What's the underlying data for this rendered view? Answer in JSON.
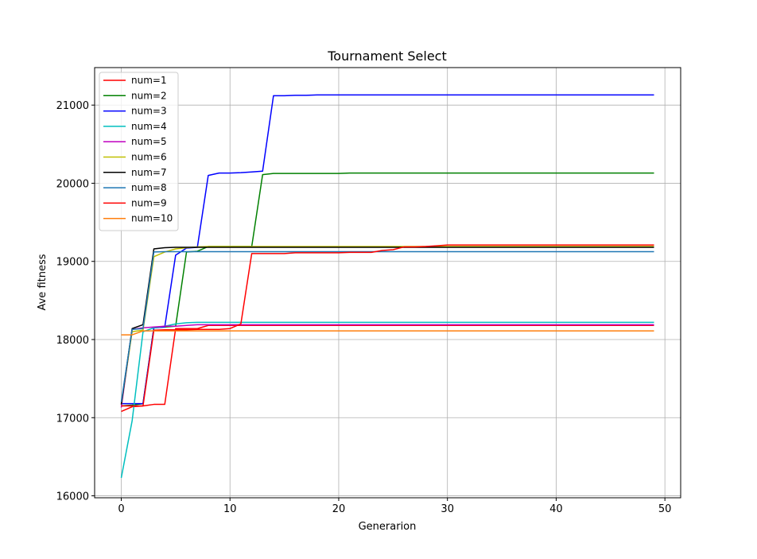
{
  "chart_data": {
    "type": "line",
    "title": "Tournament Select",
    "xlabel": "Generarion",
    "ylabel": "Ave fitness",
    "xlim": [
      -2.45,
      51.45
    ],
    "ylim": [
      15975,
      21480
    ],
    "xticks": [
      0,
      10,
      20,
      30,
      40,
      50
    ],
    "yticks": [
      16000,
      17000,
      18000,
      19000,
      20000,
      21000
    ],
    "grid": true,
    "legend_position": "upper-left",
    "x": [
      0,
      1,
      2,
      3,
      4,
      5,
      6,
      7,
      8,
      9,
      10,
      11,
      12,
      13,
      14,
      15,
      16,
      17,
      18,
      19,
      20,
      21,
      22,
      23,
      24,
      25,
      26,
      27,
      28,
      29,
      30,
      31,
      32,
      33,
      34,
      35,
      36,
      37,
      38,
      39,
      40,
      41,
      42,
      43,
      44,
      45,
      46,
      47,
      48,
      49
    ],
    "series": [
      {
        "name": "num=1",
        "color": "#ff0000",
        "values": [
          17080,
          17140,
          17150,
          17170,
          17170,
          18140,
          18140,
          18140,
          18180,
          18180,
          18180,
          18180,
          18180,
          18180,
          18180,
          18180,
          18180,
          18180,
          18180,
          18180,
          18180,
          18180,
          18180,
          18180,
          18180,
          18180,
          18180,
          18180,
          18180,
          18180,
          18180,
          18180,
          18180,
          18180,
          18180,
          18180,
          18180,
          18180,
          18180,
          18180,
          18180,
          18180,
          18180,
          18180,
          18180,
          18180,
          18180,
          18180,
          18180,
          18180
        ]
      },
      {
        "name": "num=2",
        "color": "#008000",
        "values": [
          17150,
          17160,
          17180,
          18150,
          18160,
          18170,
          19120,
          19130,
          19190,
          19190,
          19190,
          19190,
          19190,
          20110,
          20125,
          20125,
          20125,
          20125,
          20125,
          20125,
          20125,
          20130,
          20130,
          20130,
          20130,
          20130,
          20130,
          20130,
          20130,
          20130,
          20130,
          20130,
          20130,
          20130,
          20130,
          20130,
          20130,
          20130,
          20130,
          20130,
          20130,
          20130,
          20130,
          20130,
          20130,
          20130,
          20130,
          20130,
          20130,
          20130
        ]
      },
      {
        "name": "num=3",
        "color": "#0000ff",
        "values": [
          17180,
          17180,
          17180,
          18150,
          18160,
          19080,
          19170,
          19180,
          20100,
          20130,
          20130,
          20135,
          20145,
          20155,
          21120,
          21120,
          21125,
          21125,
          21130,
          21130,
          21130,
          21130,
          21130,
          21130,
          21130,
          21130,
          21130,
          21130,
          21130,
          21130,
          21130,
          21130,
          21130,
          21130,
          21130,
          21130,
          21130,
          21130,
          21130,
          21130,
          21130,
          21130,
          21130,
          21130,
          21130,
          21130,
          21130,
          21130,
          21130,
          21130
        ]
      },
      {
        "name": "num=4",
        "color": "#00bfbf",
        "values": [
          16230,
          16960,
          18100,
          18150,
          18170,
          18200,
          18215,
          18220,
          18220,
          18220,
          18220,
          18220,
          18220,
          18220,
          18220,
          18220,
          18220,
          18220,
          18220,
          18220,
          18220,
          18220,
          18220,
          18220,
          18220,
          18220,
          18220,
          18220,
          18220,
          18220,
          18220,
          18220,
          18220,
          18220,
          18220,
          18220,
          18220,
          18220,
          18220,
          18220,
          18220,
          18220,
          18220,
          18220,
          18220,
          18220,
          18220,
          18220,
          18220,
          18220
        ]
      },
      {
        "name": "num=5",
        "color": "#bf00bf",
        "values": [
          17130,
          18130,
          18150,
          18160,
          18170,
          18170,
          18180,
          18190,
          18190,
          18190,
          18190,
          18190,
          18190,
          18190,
          18190,
          18190,
          18190,
          18190,
          18190,
          18190,
          18190,
          18190,
          18190,
          18190,
          18190,
          18190,
          18190,
          18190,
          18190,
          18190,
          18190,
          18190,
          18190,
          18190,
          18190,
          18190,
          18190,
          18190,
          18190,
          18190,
          18190,
          18190,
          18190,
          18190,
          18190,
          18190,
          18190,
          18190,
          18190,
          18190
        ]
      },
      {
        "name": "num=6",
        "color": "#bfbf00",
        "values": [
          17170,
          18100,
          18120,
          19060,
          19120,
          19160,
          19175,
          19185,
          19190,
          19190,
          19190,
          19190,
          19190,
          19190,
          19190,
          19190,
          19190,
          19190,
          19190,
          19190,
          19190,
          19190,
          19190,
          19190,
          19190,
          19190,
          19190,
          19190,
          19190,
          19190,
          19190,
          19190,
          19190,
          19190,
          19190,
          19190,
          19190,
          19190,
          19190,
          19190,
          19190,
          19190,
          19190,
          19190,
          19190,
          19190,
          19190,
          19190,
          19190,
          19190
        ]
      },
      {
        "name": "num=7",
        "color": "#000000",
        "values": [
          17170,
          18140,
          18190,
          19160,
          19175,
          19180,
          19180,
          19180,
          19180,
          19180,
          19180,
          19180,
          19180,
          19180,
          19180,
          19180,
          19180,
          19180,
          19180,
          19180,
          19180,
          19180,
          19180,
          19180,
          19180,
          19180,
          19180,
          19180,
          19180,
          19180,
          19180,
          19180,
          19180,
          19180,
          19180,
          19180,
          19180,
          19180,
          19180,
          19180,
          19180,
          19180,
          19180,
          19180,
          19180,
          19180,
          19180,
          19180,
          19180,
          19180
        ]
      },
      {
        "name": "num=8",
        "color": "#1f77b4",
        "values": [
          17200,
          18130,
          18140,
          19120,
          19125,
          19125,
          19125,
          19125,
          19125,
          19125,
          19125,
          19125,
          19125,
          19125,
          19125,
          19125,
          19125,
          19125,
          19125,
          19125,
          19125,
          19125,
          19125,
          19125,
          19125,
          19125,
          19125,
          19125,
          19125,
          19125,
          19125,
          19125,
          19125,
          19125,
          19125,
          19125,
          19125,
          19125,
          19125,
          19125,
          19125,
          19125,
          19125,
          19125,
          19125,
          19125,
          19125,
          19125,
          19125,
          19125
        ]
      },
      {
        "name": "num=9",
        "color": "#ff0000",
        "values": [
          17150,
          17150,
          17150,
          18120,
          18125,
          18125,
          18125,
          18130,
          18130,
          18130,
          18140,
          18200,
          19100,
          19100,
          19100,
          19100,
          19110,
          19110,
          19110,
          19110,
          19110,
          19115,
          19115,
          19115,
          19140,
          19150,
          19185,
          19185,
          19190,
          19200,
          19210,
          19210,
          19210,
          19210,
          19210,
          19210,
          19210,
          19210,
          19210,
          19210,
          19210,
          19210,
          19210,
          19210,
          19210,
          19210,
          19210,
          19210,
          19210,
          19210
        ]
      },
      {
        "name": "num=10",
        "color": "#ff7f0e",
        "values": [
          18060,
          18060,
          18110,
          18110,
          18110,
          18110,
          18110,
          18110,
          18110,
          18110,
          18110,
          18110,
          18110,
          18110,
          18110,
          18110,
          18110,
          18110,
          18110,
          18110,
          18110,
          18110,
          18110,
          18110,
          18110,
          18110,
          18110,
          18110,
          18110,
          18110,
          18110,
          18110,
          18110,
          18110,
          18110,
          18110,
          18110,
          18110,
          18110,
          18110,
          18110,
          18110,
          18110,
          18110,
          18110,
          18110,
          18110,
          18110,
          18110,
          18110
        ]
      }
    ]
  }
}
